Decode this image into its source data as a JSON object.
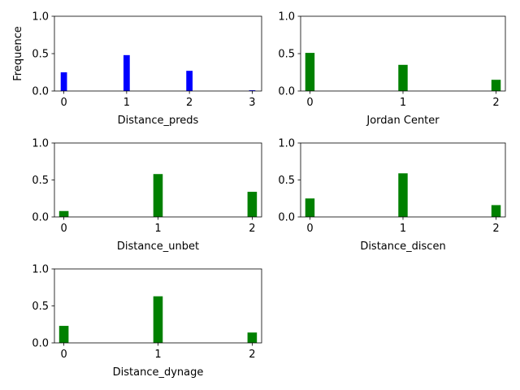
{
  "chart_data": [
    {
      "type": "bar",
      "xlabel": "Distance_preds",
      "ylabel": "Frequence",
      "ylim": [
        0,
        1.0
      ],
      "xlim": [
        -0.15,
        3.15
      ],
      "yticks": [
        "0.0",
        "0.5",
        "1.0"
      ],
      "yticks_values": [
        0,
        0.5,
        1.0
      ],
      "xticks": [
        "0",
        "1",
        "2",
        "3"
      ],
      "x": [
        0,
        1,
        2,
        3
      ],
      "values": [
        0.25,
        0.48,
        0.27,
        0.01
      ],
      "color": "#0000ff"
    },
    {
      "type": "bar",
      "xlabel": "Jordan Center",
      "ylabel": "",
      "ylim": [
        0,
        1.0
      ],
      "xlim": [
        -0.1,
        2.1
      ],
      "yticks": [
        "0.0",
        "0.5",
        "1.0"
      ],
      "yticks_values": [
        0,
        0.5,
        1.0
      ],
      "xticks": [
        "0",
        "1",
        "2"
      ],
      "x": [
        0,
        1,
        2
      ],
      "values": [
        0.51,
        0.35,
        0.15
      ],
      "color": "#008000"
    },
    {
      "type": "bar",
      "xlabel": "Distance_unbet",
      "ylabel": "",
      "ylim": [
        0,
        1.0
      ],
      "xlim": [
        -0.1,
        2.1
      ],
      "yticks": [
        "0.0",
        "0.5",
        "1.0"
      ],
      "yticks_values": [
        0,
        0.5,
        1.0
      ],
      "xticks": [
        "0",
        "1",
        "2"
      ],
      "x": [
        0,
        1,
        2
      ],
      "values": [
        0.08,
        0.58,
        0.34
      ],
      "color": "#008000"
    },
    {
      "type": "bar",
      "xlabel": "Distance_discen",
      "ylabel": "",
      "ylim": [
        0,
        1.0
      ],
      "xlim": [
        -0.1,
        2.1
      ],
      "yticks": [
        "0.0",
        "0.5",
        "1.0"
      ],
      "yticks_values": [
        0,
        0.5,
        1.0
      ],
      "xticks": [
        "0",
        "1",
        "2"
      ],
      "x": [
        0,
        1,
        2
      ],
      "values": [
        0.25,
        0.59,
        0.16
      ],
      "color": "#008000"
    },
    {
      "type": "bar",
      "xlabel": "Distance_dynage",
      "ylabel": "",
      "ylim": [
        0,
        1.0
      ],
      "xlim": [
        -0.1,
        2.1
      ],
      "yticks": [
        "0.0",
        "0.5",
        "1.0"
      ],
      "yticks_values": [
        0,
        0.5,
        1.0
      ],
      "xticks": [
        "0",
        "1",
        "2"
      ],
      "x": [
        0,
        1,
        2
      ],
      "values": [
        0.23,
        0.63,
        0.14
      ],
      "color": "#008000"
    }
  ]
}
